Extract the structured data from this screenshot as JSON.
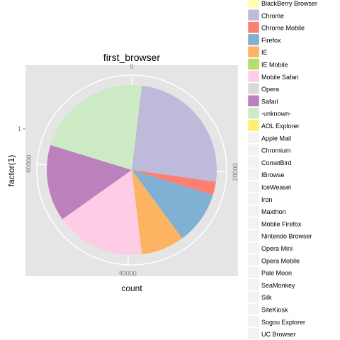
{
  "chart_data": {
    "type": "pie",
    "title": "first_browser",
    "xlabel": "count",
    "ylabel": "factor(1)",
    "y_tick_labels": [
      "1"
    ],
    "radial_ticks": [
      0,
      20000,
      40000,
      60000
    ],
    "radial_tick_labels": [
      "0",
      "20000",
      "40000",
      "60000"
    ],
    "total": 79000,
    "grid": true,
    "legend_position": "right",
    "slices": [
      {
        "name": "-unknown-",
        "value": 1500,
        "color": "#CCEBC5"
      },
      {
        "name": "Chrome",
        "value": 20000,
        "color": "#BEBADA"
      },
      {
        "name": "Chrome Mobile",
        "value": 2000,
        "color": "#FB8072"
      },
      {
        "name": "Firefox",
        "value": 8000,
        "color": "#80B1D3"
      },
      {
        "name": "IE",
        "value": 6500,
        "color": "#FDB462"
      },
      {
        "name": "Mobile Safari",
        "value": 13500,
        "color": "#FCCDE5"
      },
      {
        "name": "Safari",
        "value": 11500,
        "color": "#BC80BD"
      },
      {
        "name": "-unknown-",
        "value": 16000,
        "color": "#CCEBC5"
      }
    ],
    "legend": [
      {
        "label": "BlackBerry Browser",
        "color": "#FFFFB3"
      },
      {
        "label": "Chrome",
        "color": "#BEBADA"
      },
      {
        "label": "Chrome Mobile",
        "color": "#FB8072"
      },
      {
        "label": "Firefox",
        "color": "#80B1D3"
      },
      {
        "label": "IE",
        "color": "#FDB462"
      },
      {
        "label": "IE Mobile",
        "color": "#B3DE69"
      },
      {
        "label": "Mobile Safari",
        "color": "#FCCDE5"
      },
      {
        "label": "Opera",
        "color": "#D9D9D9"
      },
      {
        "label": "Safari",
        "color": "#BC80BD"
      },
      {
        "label": "-unknown-",
        "color": "#CCEBC5"
      },
      {
        "label": "AOL Explorer",
        "color": "#FFED6F"
      },
      {
        "label": "Apple Mail",
        "color": "#F2F2F2"
      },
      {
        "label": "Chromium",
        "color": "#F2F2F2"
      },
      {
        "label": "CometBird",
        "color": "#F2F2F2"
      },
      {
        "label": "IBrowse",
        "color": "#F2F2F2"
      },
      {
        "label": "IceWeasel",
        "color": "#F2F2F2"
      },
      {
        "label": "Iron",
        "color": "#F2F2F2"
      },
      {
        "label": "Maxthon",
        "color": "#F2F2F2"
      },
      {
        "label": "Mobile Firefox",
        "color": "#F2F2F2"
      },
      {
        "label": "Nintendo Browser",
        "color": "#F2F2F2"
      },
      {
        "label": "Opera Mini",
        "color": "#F2F2F2"
      },
      {
        "label": "Opera Mobile",
        "color": "#F2F2F2"
      },
      {
        "label": "Pale Moon",
        "color": "#F2F2F2"
      },
      {
        "label": "SeaMonkey",
        "color": "#F2F2F2"
      },
      {
        "label": "Silk",
        "color": "#F2F2F2"
      },
      {
        "label": "SiteKiosk",
        "color": "#F2F2F2"
      },
      {
        "label": "Sogou Explorer",
        "color": "#F2F2F2"
      },
      {
        "label": "UC Browser",
        "color": "#F2F2F2"
      }
    ]
  }
}
